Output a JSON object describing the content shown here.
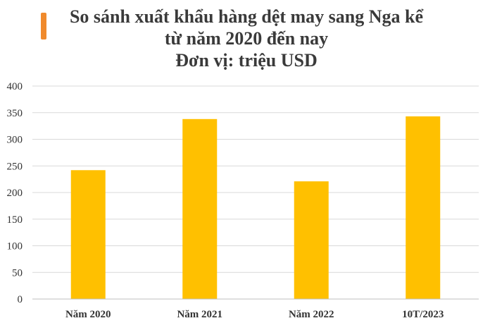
{
  "colors": {
    "accent": "#f08a2c",
    "bar": "#ffc000",
    "grid": "#d9d9d9",
    "text": "#3a3a3a"
  },
  "chart_data": {
    "type": "bar",
    "title_lines": [
      "So sánh xuất khẩu hàng dệt may sang Nga kể",
      "từ năm 2020 đến nay",
      "Đơn vị: triệu USD"
    ],
    "categories": [
      "Năm 2020",
      "Năm 2021",
      "Năm 2022",
      "10T/2023"
    ],
    "values": [
      242,
      338,
      221,
      343
    ],
    "ylim": [
      0,
      400
    ],
    "yticks": [
      0,
      50,
      100,
      150,
      200,
      250,
      300,
      350,
      400
    ],
    "grid": true,
    "legend": "none"
  }
}
